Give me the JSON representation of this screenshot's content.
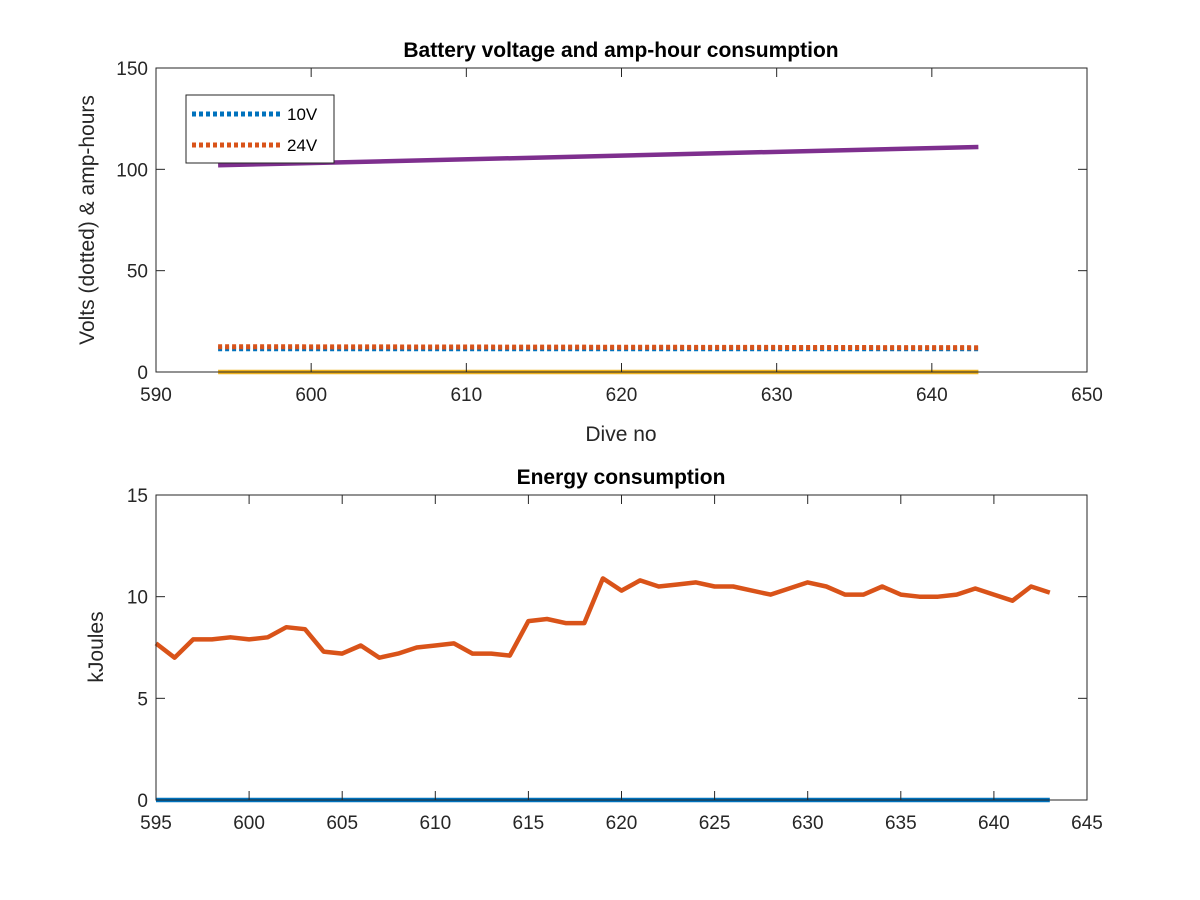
{
  "chart_data": [
    {
      "type": "line",
      "title": "Battery voltage and amp-hour consumption",
      "xlabel": "Dive no",
      "ylabel": "Volts (dotted) & amp-hours",
      "xlim": [
        590,
        650
      ],
      "ylim": [
        0,
        150
      ],
      "xticks": [
        "590",
        "600",
        "610",
        "620",
        "630",
        "640",
        "650"
      ],
      "yticks": [
        "0",
        "50",
        "100",
        "150"
      ],
      "grid": false,
      "legend": {
        "placement": "top-left",
        "entries": [
          "10V",
          "24V"
        ]
      },
      "series": [
        {
          "name": "10V",
          "color": "#0072BD",
          "style": "dotted",
          "x": [
            594,
            643
          ],
          "y": [
            11.5,
            11.5
          ]
        },
        {
          "name": "24V",
          "color": "#D95319",
          "style": "dotted",
          "x": [
            594,
            643
          ],
          "y": [
            12.5,
            12.0
          ]
        },
        {
          "color": "#EDB120",
          "style": "solid",
          "x": [
            594,
            643
          ],
          "y": [
            0,
            0
          ]
        },
        {
          "color": "#7E2F8E",
          "style": "solid",
          "x": [
            594,
            643
          ],
          "y": [
            102,
            111
          ]
        }
      ]
    },
    {
      "type": "line",
      "title": "Energy consumption",
      "xlabel": "",
      "ylabel": "kJoules",
      "xlim": [
        595,
        645
      ],
      "ylim": [
        0,
        15
      ],
      "xticks": [
        "595",
        "600",
        "605",
        "610",
        "615",
        "620",
        "625",
        "630",
        "635",
        "640",
        "645"
      ],
      "yticks": [
        "0",
        "5",
        "10",
        "15"
      ],
      "grid": false,
      "series": [
        {
          "color": "#D95319",
          "style": "solid",
          "x": [
            595,
            596,
            597,
            598,
            599,
            600,
            601,
            602,
            603,
            604,
            605,
            606,
            607,
            608,
            609,
            610,
            611,
            612,
            613,
            614,
            615,
            616,
            617,
            618,
            619,
            620,
            621,
            622,
            623,
            624,
            625,
            626,
            627,
            628,
            629,
            630,
            631,
            632,
            633,
            634,
            635,
            636,
            637,
            638,
            639,
            640,
            641,
            642,
            643
          ],
          "y": [
            7.7,
            7.0,
            7.9,
            7.9,
            8.0,
            7.9,
            8.0,
            8.5,
            8.4,
            7.3,
            7.2,
            7.6,
            7.0,
            7.2,
            7.5,
            7.6,
            7.7,
            7.2,
            7.2,
            7.1,
            8.8,
            8.9,
            8.7,
            8.7,
            10.9,
            10.3,
            10.8,
            10.5,
            10.6,
            10.7,
            10.5,
            10.5,
            10.3,
            10.1,
            10.4,
            10.7,
            10.5,
            10.1,
            10.1,
            10.5,
            10.1,
            10.0,
            10.0,
            10.1,
            10.4,
            10.1,
            9.8,
            10.5,
            10.2
          ]
        },
        {
          "color": "#0072BD",
          "style": "solid",
          "x": [
            595,
            643
          ],
          "y": [
            0,
            0
          ]
        }
      ]
    }
  ]
}
